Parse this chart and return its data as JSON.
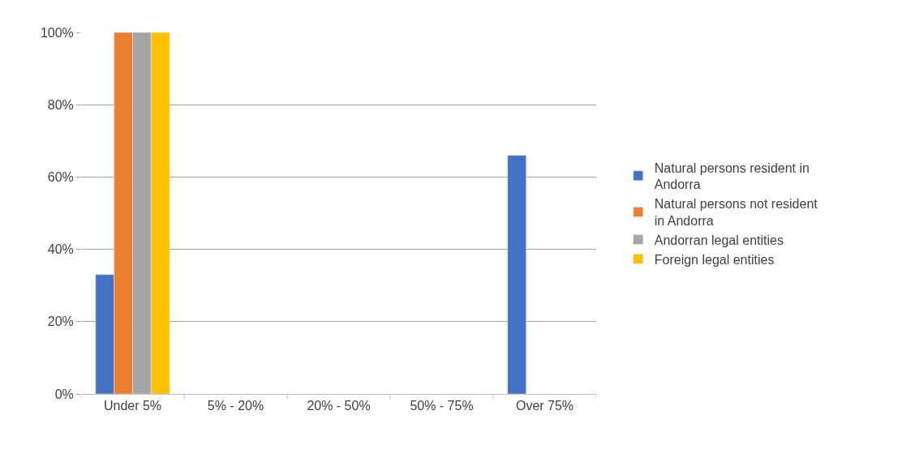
{
  "chart_data": {
    "type": "bar",
    "categories": [
      "Under 5%",
      "5% - 20%",
      "20% - 50%",
      "50% - 75%",
      "Over 75%"
    ],
    "series": [
      {
        "name": "Natural persons resident in Andorra",
        "color": "#4472c4",
        "values": [
          33,
          null,
          null,
          null,
          66
        ]
      },
      {
        "name": "Natural persons not resident in Andorra",
        "color": "#ed7d31",
        "values": [
          100,
          null,
          null,
          null,
          null
        ]
      },
      {
        "name": "Andorran legal entities",
        "color": "#a5a5a5",
        "values": [
          100,
          null,
          null,
          null,
          null
        ]
      },
      {
        "name": "Foreign legal entities",
        "color": "#ffc000",
        "values": [
          100,
          null,
          null,
          null,
          null
        ]
      }
    ],
    "ylim": [
      0,
      100
    ],
    "yticks": [
      {
        "value": 0,
        "label": "0%"
      },
      {
        "value": 20,
        "label": "20%"
      },
      {
        "value": 40,
        "label": "40%"
      },
      {
        "value": 60,
        "label": "60%"
      },
      {
        "value": 80,
        "label": "80%"
      },
      {
        "value": 100,
        "label": "100%"
      }
    ],
    "grid": "y",
    "legend": "right"
  }
}
